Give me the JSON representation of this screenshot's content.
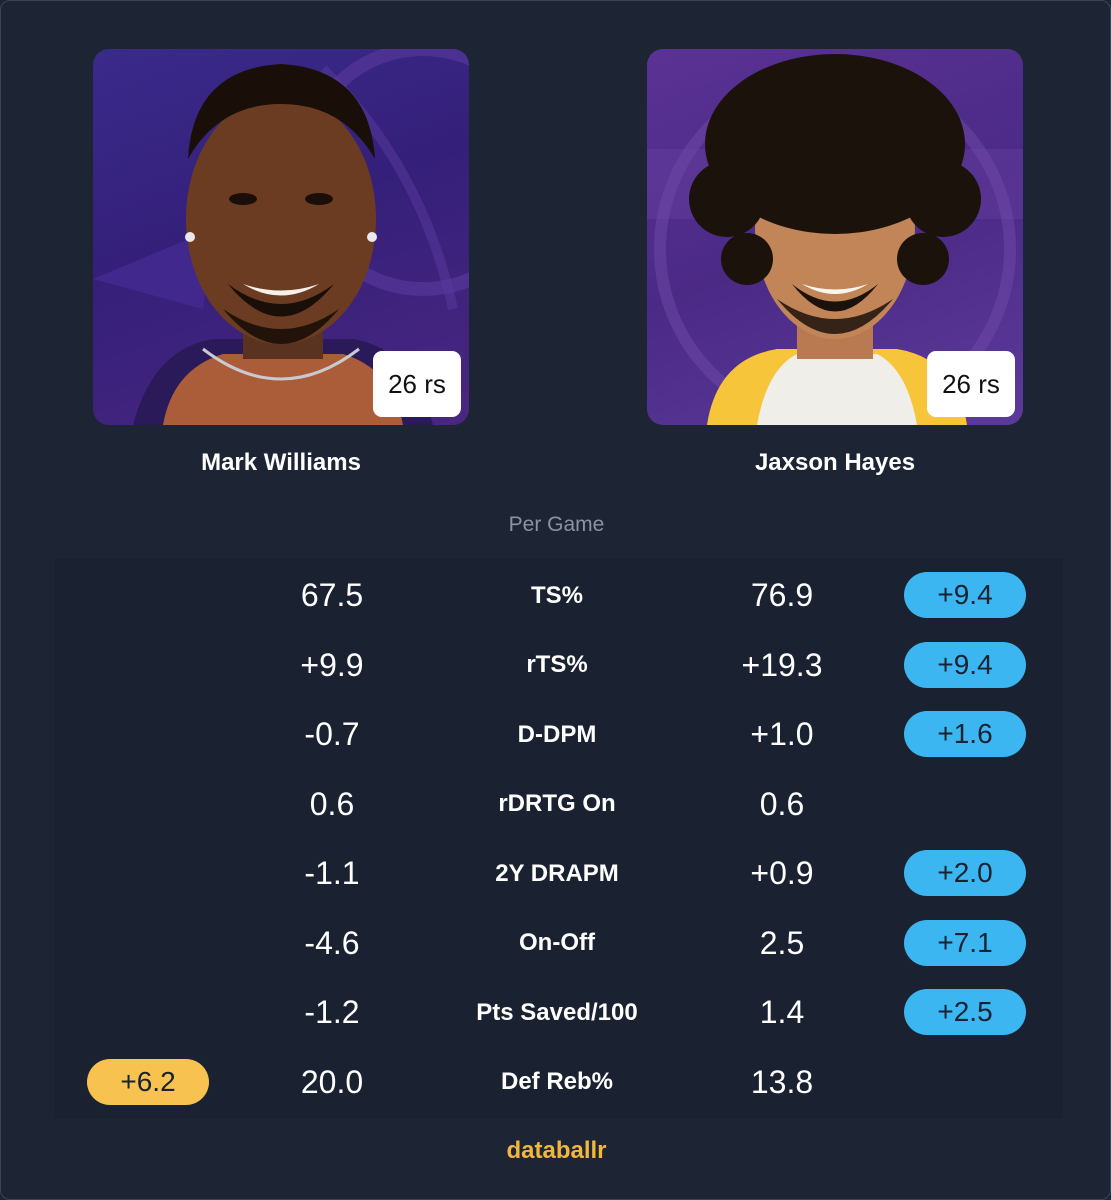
{
  "section_label": "Per Game",
  "brand": "databallr",
  "players": {
    "left": {
      "name": "Mark Williams",
      "badge": "26 rs",
      "team_color": "#3a2a8a"
    },
    "right": {
      "name": "Jaxson Hayes",
      "badge": "26 rs",
      "team_color": "#552583"
    }
  },
  "colors": {
    "advantage_right": "#3bb6f0",
    "advantage_left": "#f7c24f"
  },
  "stats": [
    {
      "label": "TS%",
      "left": "67.5",
      "right": "76.9",
      "diff": "+9.4",
      "winner": "right"
    },
    {
      "label": "rTS%",
      "left": "+9.9",
      "right": "+19.3",
      "diff": "+9.4",
      "winner": "right"
    },
    {
      "label": "D-DPM",
      "left": "-0.7",
      "right": "+1.0",
      "diff": "+1.6",
      "winner": "right"
    },
    {
      "label": "rDRTG On",
      "left": "0.6",
      "right": "0.6",
      "diff": "",
      "winner": "none"
    },
    {
      "label": "2Y DRAPM",
      "left": "-1.1",
      "right": "+0.9",
      "diff": "+2.0",
      "winner": "right"
    },
    {
      "label": "On-Off",
      "left": "-4.6",
      "right": "2.5",
      "diff": "+7.1",
      "winner": "right"
    },
    {
      "label": "Pts Saved/100",
      "left": "-1.2",
      "right": "1.4",
      "diff": "+2.5",
      "winner": "right"
    },
    {
      "label": "Def Reb%",
      "left": "20.0",
      "right": "13.8",
      "diff": "+6.2",
      "winner": "left"
    }
  ]
}
